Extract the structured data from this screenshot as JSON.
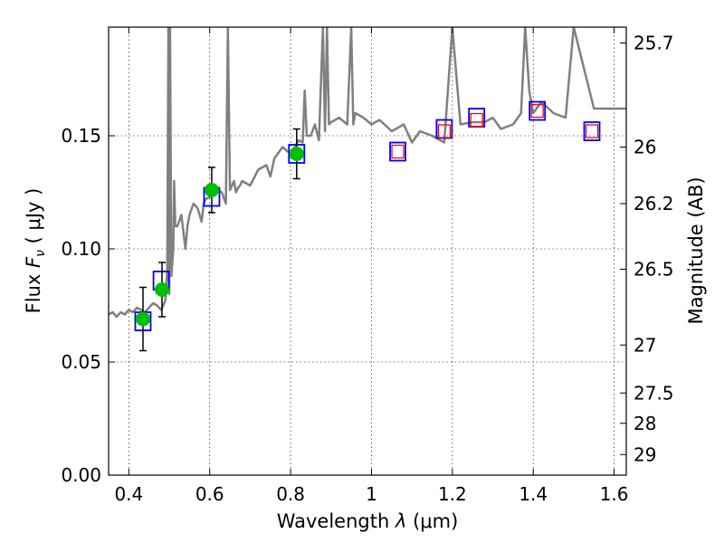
{
  "chart_data": {
    "type": "scatter",
    "title": "",
    "xlabel": "Wavelength",
    "xlabel_symbol": "λ",
    "xlabel_unit": "(μm)",
    "ylabel": "Flux",
    "ylabel_symbol": "F",
    "ylabel_subscript": "ν",
    "ylabel_unit": "( μJy )",
    "y2label": "Magnitude (AB)",
    "xlim": [
      0.35,
      1.63
    ],
    "ylim": [
      0.0,
      0.198
    ],
    "grid": true,
    "x_ticks": [
      0.4,
      0.6,
      0.8,
      1.0,
      1.2,
      1.4,
      1.6
    ],
    "x_tick_labels": [
      "0.4",
      "0.6",
      "0.8",
      "1",
      "1.2",
      "1.4",
      "1.6"
    ],
    "y_ticks": [
      0.0,
      0.05,
      0.1,
      0.15
    ],
    "y_tick_labels": [
      "0.00",
      "0.05",
      "0.10",
      "0.15"
    ],
    "y2_ticks": [
      {
        "label": "25.7",
        "flux": 0.191
      },
      {
        "label": "26",
        "flux": 0.145
      },
      {
        "label": "26.2",
        "flux": 0.12
      },
      {
        "label": "26.5",
        "flux": 0.091
      },
      {
        "label": "27",
        "flux": 0.0575
      },
      {
        "label": "27.5",
        "flux": 0.0363
      },
      {
        "label": "28",
        "flux": 0.0229
      },
      {
        "label": "29",
        "flux": 0.0091
      }
    ],
    "series": [
      {
        "name": "model spectrum",
        "kind": "line",
        "color": "#808080",
        "x": [
          0.35,
          0.36,
          0.37,
          0.38,
          0.39,
          0.4,
          0.41,
          0.42,
          0.43,
          0.44,
          0.45,
          0.46,
          0.47,
          0.48,
          0.49,
          0.495,
          0.498,
          0.5,
          0.502,
          0.505,
          0.51,
          0.512,
          0.515,
          0.52,
          0.53,
          0.54,
          0.545,
          0.55,
          0.56,
          0.57,
          0.58,
          0.585,
          0.59,
          0.6,
          0.61,
          0.62,
          0.63,
          0.64,
          0.645,
          0.65,
          0.655,
          0.66,
          0.665,
          0.67,
          0.675,
          0.68,
          0.7,
          0.72,
          0.74,
          0.75,
          0.76,
          0.78,
          0.8,
          0.82,
          0.83,
          0.835,
          0.84,
          0.85,
          0.86,
          0.87,
          0.88,
          0.885,
          0.89,
          0.895,
          0.9,
          0.92,
          0.94,
          0.95,
          0.955,
          0.96,
          0.98,
          1.0,
          1.02,
          1.05,
          1.08,
          1.1,
          1.12,
          1.15,
          1.18,
          1.2,
          1.22,
          1.25,
          1.28,
          1.3,
          1.32,
          1.35,
          1.37,
          1.38,
          1.39,
          1.4,
          1.42,
          1.45,
          1.48,
          1.5,
          1.55,
          1.6,
          1.63
        ],
        "y": [
          0.071,
          0.072,
          0.07,
          0.072,
          0.071,
          0.073,
          0.072,
          0.074,
          0.073,
          0.072,
          0.074,
          0.076,
          0.075,
          0.073,
          0.077,
          0.09,
          0.198,
          0.08,
          0.198,
          0.088,
          0.1,
          0.13,
          0.11,
          0.11,
          0.115,
          0.1,
          0.11,
          0.115,
          0.12,
          0.118,
          0.112,
          0.12,
          0.122,
          0.123,
          0.125,
          0.126,
          0.125,
          0.12,
          0.198,
          0.126,
          0.128,
          0.13,
          0.125,
          0.127,
          0.128,
          0.13,
          0.128,
          0.135,
          0.137,
          0.132,
          0.14,
          0.145,
          0.142,
          0.148,
          0.147,
          0.17,
          0.15,
          0.15,
          0.155,
          0.148,
          0.198,
          0.152,
          0.198,
          0.155,
          0.156,
          0.158,
          0.155,
          0.198,
          0.155,
          0.16,
          0.158,
          0.155,
          0.157,
          0.152,
          0.155,
          0.147,
          0.152,
          0.15,
          0.147,
          0.198,
          0.155,
          0.156,
          0.156,
          0.158,
          0.153,
          0.155,
          0.16,
          0.198,
          0.17,
          0.16,
          0.165,
          0.16,
          0.158,
          0.198,
          0.162,
          0.162,
          0.162
        ]
      },
      {
        "name": "model photometry (blue squares)",
        "kind": "marker",
        "marker": "square",
        "color": "#0000ff",
        "x": [
          0.435,
          0.48,
          0.605,
          0.815,
          1.065,
          1.18,
          1.26,
          1.41,
          1.545
        ],
        "y": [
          0.068,
          0.086,
          0.123,
          0.142,
          0.143,
          0.153,
          0.158,
          0.161,
          0.152
        ]
      },
      {
        "name": "observed photometry (green circles)",
        "kind": "marker",
        "marker": "circle",
        "color": "#00bf00",
        "x": [
          0.435,
          0.482,
          0.605,
          0.815
        ],
        "y": [
          0.069,
          0.082,
          0.126,
          0.142
        ],
        "yerr": [
          0.014,
          0.012,
          0.01,
          0.011
        ]
      },
      {
        "name": "predicted photometry (red open squares)",
        "kind": "marker",
        "marker": "square-open",
        "color": "#ff0000",
        "x": [
          1.065,
          1.18,
          1.26,
          1.41,
          1.545
        ],
        "y": [
          0.143,
          0.152,
          0.157,
          0.161,
          0.152
        ]
      }
    ]
  }
}
